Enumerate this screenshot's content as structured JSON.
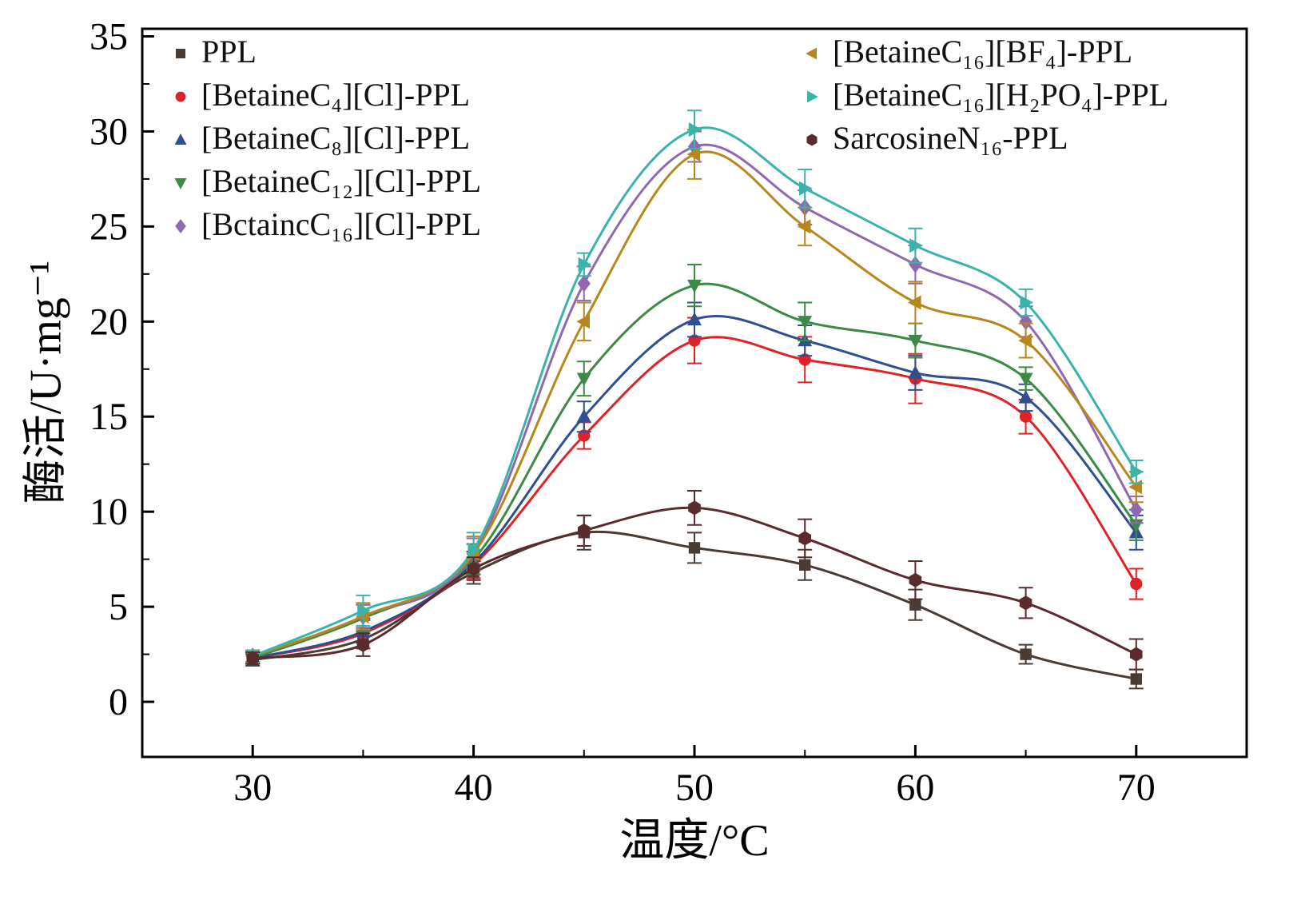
{
  "figure": {
    "background": "#ffffff",
    "frame_color": "#000000"
  },
  "chart_data": {
    "type": "line",
    "title": "",
    "xlabel": "温度/°C",
    "ylabel": "酶活/U·mg⁻¹",
    "x": [
      30,
      35,
      40,
      45,
      50,
      55,
      60,
      65,
      70
    ],
    "xlim": [
      25,
      75
    ],
    "ylim": [
      -2.9,
      35.4
    ],
    "xticks": [
      30,
      40,
      50,
      60,
      70
    ],
    "yticks": [
      0,
      5,
      10,
      15,
      20,
      25,
      30,
      35
    ],
    "xminor": [
      35,
      45,
      55,
      65
    ],
    "yminor": [
      2.5,
      7.5,
      12.5,
      17.5,
      22.5,
      27.5,
      32.5
    ],
    "grid": false,
    "legend_position": "top-inside-two-columns",
    "series": [
      {
        "name": "PPL",
        "marker": "square",
        "color": "#4a3b33",
        "values": [
          2.2,
          3.3,
          6.8,
          8.9,
          8.1,
          7.2,
          5.1,
          2.5,
          1.2
        ],
        "errors": [
          0.3,
          0.5,
          0.6,
          0.9,
          0.8,
          0.8,
          0.8,
          0.5,
          0.5
        ]
      },
      {
        "name": "[BetaineC₄][Cl]-PPL",
        "marker": "circle",
        "color": "#e02227",
        "values": [
          2.3,
          3.6,
          7.2,
          14.0,
          19.0,
          18.0,
          17.0,
          15.0,
          6.2
        ],
        "errors": [
          0.3,
          0.8,
          0.7,
          0.7,
          1.2,
          1.2,
          1.3,
          0.9,
          0.8
        ]
      },
      {
        "name": "[BetaineC₈][Cl]-PPL",
        "marker": "triangle-up",
        "color": "#2f4f90",
        "values": [
          2.3,
          3.7,
          7.3,
          15.0,
          20.1,
          19.0,
          17.3,
          16.0,
          8.9
        ],
        "errors": [
          0.3,
          0.6,
          0.6,
          0.8,
          0.9,
          0.8,
          0.9,
          0.7,
          0.9
        ]
      },
      {
        "name": "[BetaineC₁₂][Cl]-PPL",
        "marker": "triangle-down",
        "color": "#3c8a46",
        "values": [
          2.3,
          4.4,
          7.5,
          17.0,
          21.9,
          20.0,
          19.0,
          17.0,
          9.3
        ],
        "errors": [
          0.3,
          0.7,
          0.8,
          0.9,
          1.1,
          1.0,
          0.9,
          0.6,
          0.8
        ]
      },
      {
        "name": "[BctaincC₁₆][Cl]-PPL",
        "marker": "diamond",
        "color": "#8e68b0",
        "values": [
          2.4,
          4.5,
          7.8,
          22.0,
          29.2,
          26.0,
          23.0,
          20.0,
          10.1
        ],
        "errors": [
          0.3,
          0.6,
          0.8,
          0.9,
          0.8,
          0.9,
          1.0,
          0.8,
          0.7
        ]
      },
      {
        "name": "[BetaineC₁₆][BF₄]-PPL",
        "marker": "triangle-left",
        "color": "#b6871b",
        "values": [
          2.4,
          4.5,
          7.8,
          20.0,
          28.8,
          25.0,
          21.0,
          19.0,
          11.3
        ],
        "errors": [
          0.3,
          0.7,
          0.9,
          1.0,
          1.3,
          1.0,
          1.1,
          0.9,
          0.8
        ]
      },
      {
        "name": "[BetaineC₁₆][H₂PO₄]-PPL",
        "marker": "triangle-right",
        "color": "#3bb3ab",
        "values": [
          2.4,
          4.8,
          8.0,
          23.0,
          30.1,
          27.0,
          24.0,
          21.0,
          12.1
        ],
        "errors": [
          0.3,
          0.8,
          0.9,
          0.6,
          1.0,
          1.0,
          0.9,
          0.7,
          0.6
        ]
      },
      {
        "name": "SarcosineN₁₆-PPL",
        "marker": "hexagon",
        "color": "#5a2a2d",
        "values": [
          2.3,
          3.0,
          7.0,
          9.0,
          10.2,
          8.6,
          6.4,
          5.2,
          2.5
        ],
        "errors": [
          0.3,
          0.6,
          0.6,
          0.8,
          0.9,
          1.0,
          1.0,
          0.8,
          0.8
        ]
      }
    ],
    "legend_columns": {
      "left": [
        0,
        1,
        2,
        3,
        4
      ],
      "right": [
        5,
        6,
        7
      ]
    }
  }
}
